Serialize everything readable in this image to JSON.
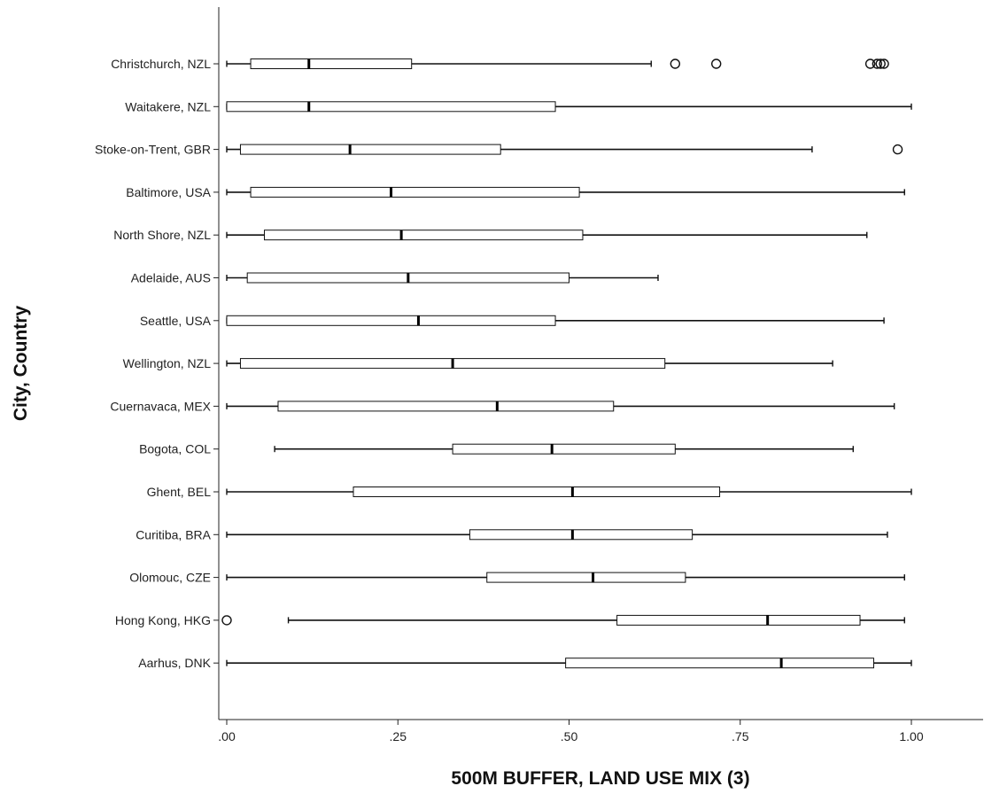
{
  "chart_data": {
    "type": "boxplot",
    "orientation": "horizontal",
    "xlabel": "500M BUFFER, LAND USE MIX (3)",
    "ylabel": "City, Country",
    "xlim": [
      -0.02,
      1.12
    ],
    "xticks": [
      0,
      0.25,
      0.5,
      0.75,
      1.0
    ],
    "xtick_labels": [
      ".00",
      ".25",
      ".50",
      ".75",
      "1.00"
    ],
    "grid": false,
    "categories": [
      "Christchurch, NZL",
      "Waitakere, NZL",
      "Stoke-on-Trent, GBR",
      "Baltimore, USA",
      "North Shore, NZL",
      "Adelaide, AUS",
      "Seattle, USA",
      "Wellington, NZL",
      "Cuernavaca, MEX",
      "Bogota, COL",
      "Ghent, BEL",
      "Curitiba, BRA",
      "Olomouc, CZE",
      "Hong Kong, HKG",
      "Aarhus, DNK"
    ],
    "boxes": [
      {
        "whisker_low": 0.0,
        "q1": 0.035,
        "median": 0.12,
        "q3": 0.27,
        "whisker_high": 0.62,
        "outliers": [
          0.655,
          0.715,
          0.94,
          0.95,
          0.955,
          0.96
        ]
      },
      {
        "whisker_low": 0.0,
        "q1": 0.0,
        "median": 0.12,
        "q3": 0.48,
        "whisker_high": 1.0,
        "outliers": []
      },
      {
        "whisker_low": 0.0,
        "q1": 0.02,
        "median": 0.18,
        "q3": 0.4,
        "whisker_high": 0.855,
        "outliers": [
          0.98
        ]
      },
      {
        "whisker_low": 0.0,
        "q1": 0.035,
        "median": 0.24,
        "q3": 0.515,
        "whisker_high": 0.99,
        "outliers": []
      },
      {
        "whisker_low": 0.0,
        "q1": 0.055,
        "median": 0.255,
        "q3": 0.52,
        "whisker_high": 0.935,
        "outliers": []
      },
      {
        "whisker_low": 0.0,
        "q1": 0.03,
        "median": 0.265,
        "q3": 0.5,
        "whisker_high": 0.63,
        "outliers": []
      },
      {
        "whisker_low": 0.0,
        "q1": 0.0,
        "median": 0.28,
        "q3": 0.48,
        "whisker_high": 0.96,
        "outliers": []
      },
      {
        "whisker_low": 0.0,
        "q1": 0.02,
        "median": 0.33,
        "q3": 0.64,
        "whisker_high": 0.885,
        "outliers": []
      },
      {
        "whisker_low": 0.0,
        "q1": 0.075,
        "median": 0.395,
        "q3": 0.565,
        "whisker_high": 0.975,
        "outliers": []
      },
      {
        "whisker_low": 0.07,
        "q1": 0.33,
        "median": 0.475,
        "q3": 0.655,
        "whisker_high": 0.915,
        "outliers": []
      },
      {
        "whisker_low": 0.0,
        "q1": 0.185,
        "median": 0.505,
        "q3": 0.72,
        "whisker_high": 1.0,
        "outliers": []
      },
      {
        "whisker_low": 0.0,
        "q1": 0.355,
        "median": 0.505,
        "q3": 0.68,
        "whisker_high": 0.965,
        "outliers": []
      },
      {
        "whisker_low": 0.0,
        "q1": 0.38,
        "median": 0.535,
        "q3": 0.67,
        "whisker_high": 0.99,
        "outliers": []
      },
      {
        "whisker_low": 0.09,
        "q1": 0.57,
        "median": 0.79,
        "q3": 0.925,
        "whisker_high": 0.99,
        "outliers": [
          0.0
        ]
      },
      {
        "whisker_low": 0.0,
        "q1": 0.495,
        "median": 0.81,
        "q3": 0.945,
        "whisker_high": 1.0,
        "outliers": []
      }
    ]
  }
}
